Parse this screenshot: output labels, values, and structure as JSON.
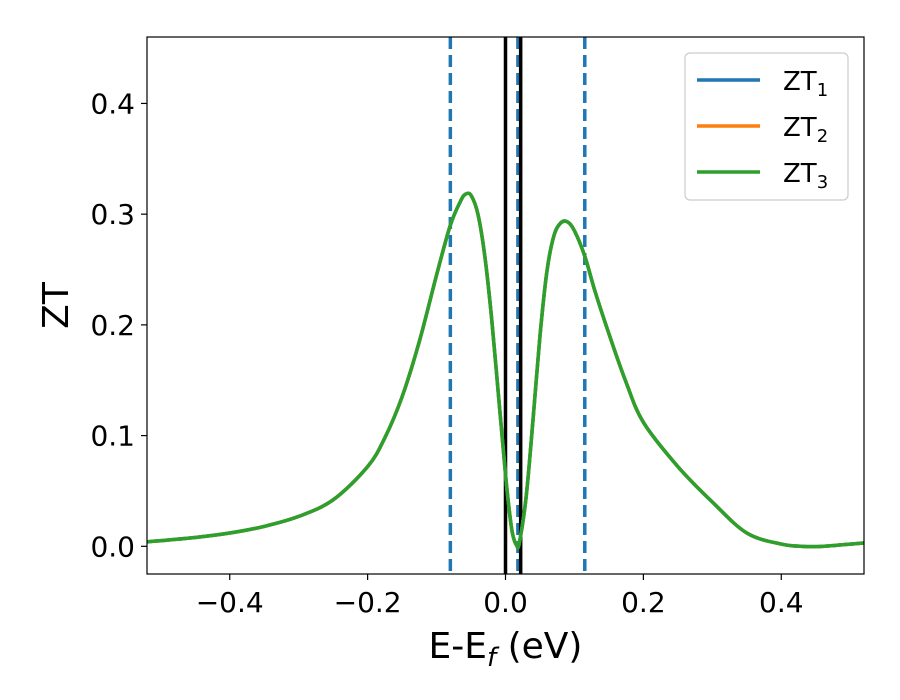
{
  "chart_data": {
    "type": "line",
    "xlabel": "E-E",
    "xlabel_sub": "f",
    "xlabel_unit": " (eV)",
    "ylabel": "ZT",
    "xlim": [
      -0.52,
      0.52
    ],
    "ylim": [
      -0.025,
      0.46
    ],
    "xticks": [
      -0.4,
      -0.2,
      0.0,
      0.2,
      0.4
    ],
    "xtick_labels": [
      "−0.4",
      "−0.2",
      "0.0",
      "0.2",
      "0.4"
    ],
    "yticks": [
      0.0,
      0.1,
      0.2,
      0.3,
      0.4
    ],
    "ytick_labels": [
      "0.0",
      "0.1",
      "0.2",
      "0.3",
      "0.4"
    ],
    "grid": false,
    "legend_position": "top-right",
    "legend": [
      {
        "base": "ZT",
        "sub": "1",
        "color": "#1f77b4"
      },
      {
        "base": "ZT",
        "sub": "2",
        "color": "#ff7f0e"
      },
      {
        "base": "ZT",
        "sub": "3",
        "color": "#2ca02c"
      }
    ],
    "vlines": [
      {
        "x": -0.08,
        "style": "dashed",
        "color": "#1f77b4"
      },
      {
        "x": 0.0,
        "style": "solid",
        "color": "#000000"
      },
      {
        "x": 0.018,
        "style": "dashed",
        "color": "#1f77b4"
      },
      {
        "x": 0.022,
        "style": "solid",
        "color": "#000000"
      },
      {
        "x": 0.115,
        "style": "dashed",
        "color": "#1f77b4"
      }
    ],
    "x": [
      -0.52,
      -0.45,
      -0.4,
      -0.35,
      -0.3,
      -0.25,
      -0.2,
      -0.175,
      -0.15,
      -0.125,
      -0.1,
      -0.08,
      -0.065,
      -0.058,
      -0.05,
      -0.04,
      -0.03,
      -0.02,
      -0.01,
      0.0,
      0.005,
      0.01,
      0.016,
      0.02,
      0.03,
      0.04,
      0.05,
      0.06,
      0.07,
      0.08,
      0.09,
      0.1,
      0.115,
      0.13,
      0.15,
      0.175,
      0.2,
      0.25,
      0.3,
      0.35,
      0.4,
      0.43,
      0.46,
      0.5,
      0.52
    ],
    "series": [
      {
        "name": "ZT",
        "values": [
          0.004,
          0.008,
          0.012,
          0.018,
          0.027,
          0.042,
          0.072,
          0.098,
          0.135,
          0.185,
          0.245,
          0.29,
          0.312,
          0.318,
          0.317,
          0.3,
          0.262,
          0.205,
          0.135,
          0.065,
          0.035,
          0.012,
          0.001,
          0.003,
          0.045,
          0.115,
          0.19,
          0.248,
          0.28,
          0.292,
          0.293,
          0.285,
          0.262,
          0.23,
          0.192,
          0.148,
          0.112,
          0.072,
          0.04,
          0.012,
          0.002,
          0.0,
          0.0,
          0.002,
          0.003
        ],
        "color": "#1f77b4"
      },
      {
        "name": "ZT",
        "values": [
          0.004,
          0.008,
          0.012,
          0.018,
          0.027,
          0.042,
          0.072,
          0.098,
          0.135,
          0.185,
          0.245,
          0.29,
          0.312,
          0.318,
          0.317,
          0.3,
          0.262,
          0.205,
          0.135,
          0.065,
          0.035,
          0.012,
          0.001,
          0.003,
          0.045,
          0.115,
          0.19,
          0.248,
          0.28,
          0.292,
          0.293,
          0.285,
          0.262,
          0.23,
          0.192,
          0.148,
          0.112,
          0.072,
          0.04,
          0.012,
          0.002,
          0.0,
          0.0,
          0.002,
          0.003
        ],
        "color": "#ff7f0e"
      },
      {
        "name": "ZT",
        "values": [
          0.004,
          0.008,
          0.012,
          0.018,
          0.027,
          0.042,
          0.072,
          0.098,
          0.135,
          0.185,
          0.245,
          0.29,
          0.312,
          0.318,
          0.317,
          0.3,
          0.262,
          0.205,
          0.135,
          0.065,
          0.035,
          0.012,
          0.001,
          0.003,
          0.045,
          0.115,
          0.19,
          0.248,
          0.28,
          0.292,
          0.293,
          0.285,
          0.262,
          0.23,
          0.192,
          0.148,
          0.112,
          0.072,
          0.04,
          0.012,
          0.002,
          0.0,
          0.0,
          0.002,
          0.003
        ],
        "color": "#2ca02c"
      }
    ]
  }
}
